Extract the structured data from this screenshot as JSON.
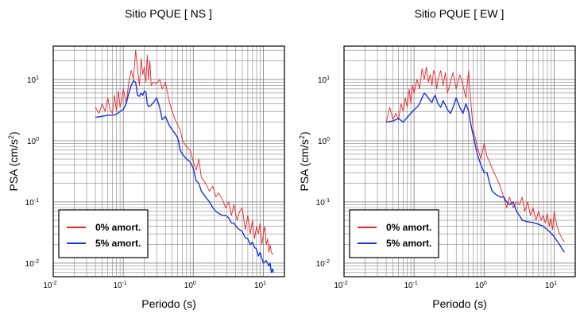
{
  "colors": {
    "undamped": "#e8262b",
    "damped": "#1a35d6",
    "grid": "#8a8a8a"
  },
  "chart_data": [
    {
      "type": "line",
      "title": "Sitio PQUE [ NS ]",
      "xlabel": "Periodo (s)",
      "ylabel_main": "PSA (cm/s",
      "ylabel_sup": "2",
      "ylabel_tail": ")",
      "x_scale": "log",
      "y_scale": "log",
      "xlim": [
        0.01,
        20
      ],
      "ylim": [
        0.006,
        35
      ],
      "x_ticks": [
        {
          "base": "10",
          "exp": "-2"
        },
        {
          "base": "10",
          "exp": "-1"
        },
        {
          "base": "10",
          "exp": "0"
        },
        {
          "base": "10",
          "exp": "1"
        }
      ],
      "y_ticks": [
        {
          "base": "10",
          "exp": "-2"
        },
        {
          "base": "10",
          "exp": "-1"
        },
        {
          "base": "10",
          "exp": "0"
        },
        {
          "base": "10",
          "exp": "1"
        }
      ],
      "grid": true,
      "legend_position": "bottom-left",
      "series": [
        {
          "name": "0% amort.",
          "color": "#e8262b",
          "x": [
            0.04,
            0.045,
            0.05,
            0.055,
            0.06,
            0.065,
            0.07,
            0.075,
            0.08,
            0.085,
            0.09,
            0.095,
            0.1,
            0.11,
            0.12,
            0.13,
            0.14,
            0.15,
            0.16,
            0.17,
            0.18,
            0.19,
            0.2,
            0.21,
            0.22,
            0.23,
            0.24,
            0.25,
            0.27,
            0.3,
            0.33,
            0.36,
            0.4,
            0.45,
            0.5,
            0.55,
            0.6,
            0.65,
            0.7,
            0.8,
            0.9,
            1.0,
            1.1,
            1.2,
            1.3,
            1.5,
            1.7,
            1.9,
            2.1,
            2.3,
            2.6,
            2.9,
            3.2,
            3.5,
            3.8,
            4.2,
            4.6,
            5.0,
            5.5,
            6.0,
            6.5,
            7.0,
            7.5,
            8.0,
            8.5,
            9.0,
            9.5,
            10.0,
            10.5,
            11.0,
            11.5,
            12.0,
            12.5,
            13.0,
            13.5,
            14.0
          ],
          "y": [
            3.5,
            2.8,
            4.0,
            3.0,
            5.0,
            3.2,
            2.8,
            5.5,
            3.0,
            6.5,
            3.5,
            4.5,
            7.0,
            4.0,
            9.0,
            14.0,
            10.0,
            30.0,
            15.0,
            8.0,
            22.0,
            12.0,
            16.0,
            9.0,
            25.0,
            10.0,
            20.0,
            8.0,
            9.0,
            8.5,
            10.0,
            7.0,
            9.0,
            4.5,
            3.0,
            2.2,
            1.8,
            1.5,
            1.0,
            0.8,
            0.7,
            0.45,
            0.33,
            0.5,
            0.25,
            0.2,
            0.15,
            0.18,
            0.12,
            0.14,
            0.11,
            0.08,
            0.1,
            0.06,
            0.09,
            0.05,
            0.07,
            0.08,
            0.035,
            0.06,
            0.03,
            0.05,
            0.025,
            0.04,
            0.03,
            0.045,
            0.02,
            0.03,
            0.04,
            0.02,
            0.025,
            0.015,
            0.02,
            0.015,
            0.014,
            0.014
          ]
        },
        {
          "name": "5% amort.",
          "color": "#1a35d6",
          "x": [
            0.04,
            0.05,
            0.06,
            0.07,
            0.08,
            0.09,
            0.1,
            0.11,
            0.12,
            0.13,
            0.14,
            0.15,
            0.16,
            0.17,
            0.18,
            0.19,
            0.2,
            0.21,
            0.22,
            0.23,
            0.25,
            0.27,
            0.3,
            0.33,
            0.36,
            0.4,
            0.45,
            0.5,
            0.55,
            0.6,
            0.65,
            0.7,
            0.8,
            0.9,
            1.0,
            1.1,
            1.2,
            1.3,
            1.5,
            1.7,
            1.9,
            2.1,
            2.3,
            2.6,
            2.9,
            3.2,
            3.5,
            3.8,
            4.2,
            4.6,
            5.0,
            5.5,
            6.0,
            6.5,
            7.0,
            7.5,
            8.0,
            8.5,
            9.0,
            9.5,
            10.0,
            11.0,
            12.0,
            12.5,
            13.0,
            13.5,
            14.0
          ],
          "y": [
            2.4,
            2.5,
            2.6,
            2.6,
            2.7,
            3.0,
            3.2,
            4.0,
            6.0,
            8.0,
            9.5,
            9.0,
            5.5,
            5.3,
            6.0,
            5.5,
            6.5,
            6.2,
            4.0,
            3.6,
            3.8,
            4.2,
            5.0,
            3.5,
            2.2,
            2.5,
            1.8,
            1.5,
            1.3,
            1.1,
            0.7,
            0.6,
            0.5,
            0.45,
            0.35,
            0.22,
            0.2,
            0.15,
            0.12,
            0.1,
            0.08,
            0.07,
            0.065,
            0.06,
            0.06,
            0.055,
            0.045,
            0.045,
            0.038,
            0.035,
            0.033,
            0.026,
            0.025,
            0.02,
            0.022,
            0.018,
            0.017,
            0.013,
            0.015,
            0.012,
            0.01,
            0.011,
            0.009,
            0.01,
            0.007,
            0.008,
            0.007
          ]
        }
      ]
    },
    {
      "type": "line",
      "title": "Sitio PQUE [ EW ]",
      "xlabel": "Periodo (s)",
      "ylabel_main": "PSA (cm/s",
      "ylabel_sup": "2",
      "ylabel_tail": ")",
      "x_scale": "log",
      "y_scale": "log",
      "xlim": [
        0.01,
        20
      ],
      "ylim": [
        0.006,
        35
      ],
      "x_ticks": [
        {
          "base": "10",
          "exp": "-2"
        },
        {
          "base": "10",
          "exp": "-1"
        },
        {
          "base": "10",
          "exp": "0"
        },
        {
          "base": "10",
          "exp": "1"
        }
      ],
      "y_ticks": [
        {
          "base": "10",
          "exp": "-2"
        },
        {
          "base": "10",
          "exp": "-1"
        },
        {
          "base": "10",
          "exp": "0"
        },
        {
          "base": "10",
          "exp": "1"
        }
      ],
      "grid": true,
      "legend_position": "bottom-left",
      "series": [
        {
          "name": "0% amort.",
          "color": "#e8262b",
          "x": [
            0.04,
            0.045,
            0.05,
            0.055,
            0.06,
            0.065,
            0.07,
            0.075,
            0.08,
            0.085,
            0.09,
            0.095,
            0.1,
            0.11,
            0.12,
            0.13,
            0.14,
            0.15,
            0.16,
            0.17,
            0.18,
            0.19,
            0.2,
            0.21,
            0.22,
            0.24,
            0.26,
            0.28,
            0.3,
            0.33,
            0.36,
            0.4,
            0.45,
            0.5,
            0.55,
            0.6,
            0.65,
            0.7,
            0.8,
            0.9,
            1.0,
            1.1,
            1.2,
            1.3,
            1.5,
            1.7,
            1.9,
            2.1,
            2.3,
            2.6,
            2.9,
            3.2,
            3.5,
            3.8,
            4.2,
            4.6,
            5.0,
            5.5,
            6.0,
            6.5,
            7.0,
            7.5,
            8.0,
            8.5,
            9.0,
            9.5,
            10.0,
            11.0,
            12.0,
            13.0,
            14.0
          ],
          "y": [
            2.0,
            3.5,
            2.2,
            2.8,
            2.2,
            4.0,
            3.0,
            5.0,
            3.5,
            7.0,
            4.0,
            8.0,
            6.0,
            10.0,
            7.0,
            15.0,
            10.0,
            16.0,
            9.0,
            12.0,
            8.0,
            14.0,
            12.0,
            7.0,
            10.0,
            14.0,
            8.0,
            13.0,
            6.0,
            9.0,
            13.0,
            7.0,
            12.0,
            8.0,
            5.0,
            14.0,
            4.0,
            1.5,
            0.8,
            0.5,
            0.9,
            0.55,
            0.45,
            0.35,
            0.25,
            0.18,
            0.12,
            0.08,
            0.12,
            0.08,
            0.1,
            0.09,
            0.12,
            0.07,
            0.1,
            0.06,
            0.08,
            0.05,
            0.07,
            0.05,
            0.06,
            0.045,
            0.065,
            0.04,
            0.055,
            0.035,
            0.07,
            0.04,
            0.03,
            0.025,
            0.022
          ]
        },
        {
          "name": "5% amort.",
          "color": "#1a35d6",
          "x": [
            0.04,
            0.05,
            0.06,
            0.07,
            0.08,
            0.09,
            0.1,
            0.11,
            0.12,
            0.13,
            0.14,
            0.15,
            0.16,
            0.17,
            0.18,
            0.19,
            0.2,
            0.22,
            0.24,
            0.26,
            0.28,
            0.3,
            0.33,
            0.36,
            0.4,
            0.45,
            0.5,
            0.55,
            0.6,
            0.65,
            0.7,
            0.8,
            0.9,
            1.0,
            1.1,
            1.2,
            1.3,
            1.5,
            1.7,
            1.9,
            2.1,
            2.3,
            2.6,
            2.9,
            3.2,
            3.5,
            4.0,
            5.0,
            6.0,
            7.0,
            8.0,
            9.0,
            10.0,
            11.0,
            12.0,
            13.0,
            14.0
          ],
          "y": [
            2.0,
            2.1,
            2.3,
            2.0,
            2.4,
            2.8,
            3.2,
            3.5,
            4.0,
            5.0,
            6.0,
            5.5,
            5.0,
            4.5,
            4.2,
            5.0,
            5.5,
            4.0,
            3.5,
            4.5,
            3.8,
            3.2,
            2.8,
            3.5,
            5.0,
            3.5,
            2.8,
            4.0,
            3.0,
            1.8,
            1.2,
            0.6,
            0.4,
            0.3,
            0.3,
            0.2,
            0.15,
            0.13,
            0.12,
            0.12,
            0.1,
            0.09,
            0.1,
            0.07,
            0.06,
            0.05,
            0.048,
            0.046,
            0.043,
            0.04,
            0.035,
            0.031,
            0.027,
            0.023,
            0.02,
            0.017,
            0.015
          ]
        }
      ]
    }
  ]
}
